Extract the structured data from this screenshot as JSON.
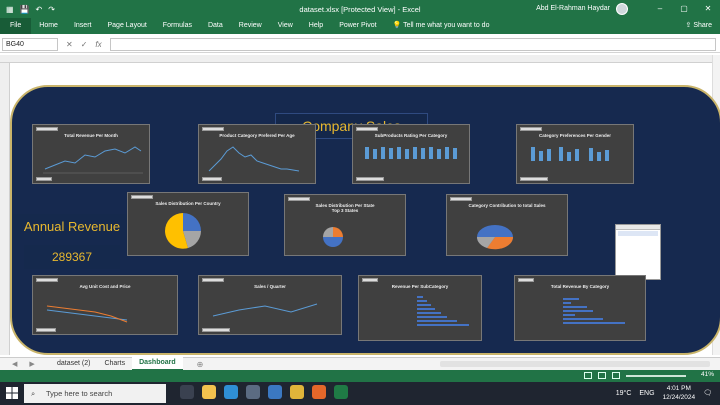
{
  "window": {
    "title": "dataset.xlsx  [Protected View]  -  Excel",
    "user": "Abd El-Rahman Haydar"
  },
  "ribbon": {
    "tabs": [
      "File",
      "Home",
      "Insert",
      "Page Layout",
      "Formulas",
      "Data",
      "Review",
      "View",
      "Help",
      "Power Pivot"
    ],
    "tell_me": "Tell me what you want to do",
    "share": "Share"
  },
  "formula_bar": {
    "name_box": "BG40",
    "formula": ""
  },
  "dashboard": {
    "title": "Company Sales",
    "annual_revenue_label": "Annual Revenue",
    "annual_revenue_value": "289367",
    "charts": [
      {
        "id": "revenue-month",
        "title": "Total Revenue Per Month"
      },
      {
        "id": "category-age",
        "title": "Product Category Prefered Per Age"
      },
      {
        "id": "subproducts-rating",
        "title": "SubProducts Rating Per Category"
      },
      {
        "id": "category-gender",
        "title": "Category Preferences Per Gender"
      },
      {
        "id": "sales-country",
        "title": "Sales Distribution Per Country"
      },
      {
        "id": "sales-state",
        "title": "Sales Distribution Per State\nTop 3 States"
      },
      {
        "id": "category-contribution",
        "title": "Category Contribution to total Sales"
      },
      {
        "id": "unit-cost-price",
        "title": "Avg Unit Cost and Price"
      },
      {
        "id": "sales-quarter",
        "title": "Sales / Quarter"
      },
      {
        "id": "revenue-subcategory",
        "title": "Revenue Per SubCategory"
      },
      {
        "id": "revenue-category",
        "title": "Total Revenue By Category"
      }
    ]
  },
  "sheets": {
    "tabs": [
      "dataset (2)",
      "Charts",
      "Dashboard"
    ],
    "active": "Dashboard"
  },
  "status": {
    "zoom": "41%"
  },
  "taskbar": {
    "search_placeholder": "Type here to search",
    "weather": "19°C",
    "time": "4:01 PM",
    "date": "12/24/2024",
    "language": "ENG"
  },
  "colors": {
    "excel_green": "#217346",
    "dashboard_bg": "#16294f",
    "accent_gold": "#e8b82f"
  }
}
